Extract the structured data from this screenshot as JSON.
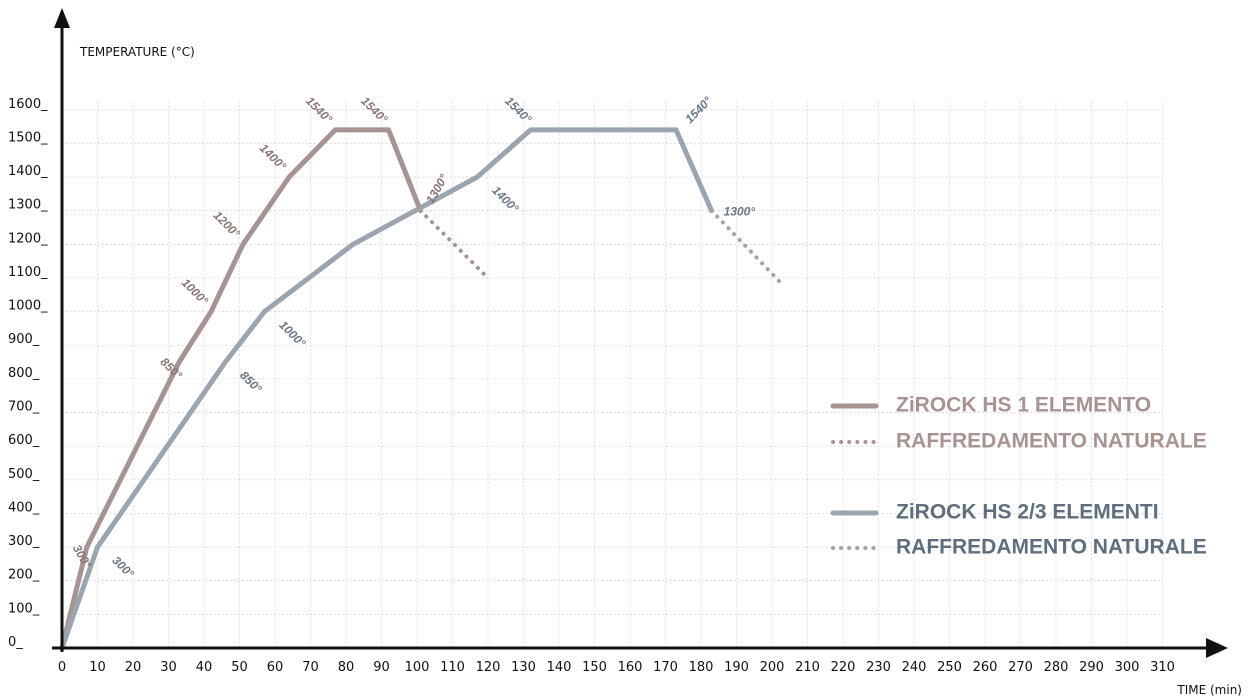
{
  "chart_data": {
    "type": "line",
    "xlabel": "TIME (min)",
    "ylabel": "TEMPERATURE (°C)",
    "xlim": [
      0,
      310
    ],
    "ylim": [
      0,
      1600
    ],
    "x_ticks": [
      "0",
      "10",
      "20",
      "30",
      "40",
      "50",
      "60",
      "70",
      "80",
      "90",
      "100",
      "110",
      "120",
      "130",
      "140",
      "150",
      "160",
      "170",
      "180",
      "190",
      "200",
      "210",
      "220",
      "230",
      "240",
      "250",
      "260",
      "270",
      "280",
      "290",
      "300",
      "310"
    ],
    "y_ticks": [
      "0_",
      "100_",
      "200_",
      "300_",
      "400_",
      "500_",
      "600_",
      "700_",
      "800_",
      "900_",
      "1000_",
      "1100_",
      "1200_",
      "1300_",
      "1400_",
      "1500_",
      "1600_"
    ],
    "grid": true,
    "legend_position": "right",
    "series": [
      {
        "name": "ZiROCK HS 1 ELEMENTO",
        "color": "#a79391",
        "style": "solid",
        "points": [
          [
            0,
            0
          ],
          [
            7,
            300
          ],
          [
            33,
            850
          ],
          [
            42,
            1000
          ],
          [
            51,
            1200
          ],
          [
            64,
            1400
          ],
          [
            77,
            1540
          ],
          [
            92,
            1540
          ],
          [
            101,
            1300
          ]
        ],
        "labels": [
          {
            "x": 7,
            "y": 300,
            "text": "300°"
          },
          {
            "x": 33,
            "y": 850,
            "text": "850°"
          },
          {
            "x": 42,
            "y": 1000,
            "text": "1000°"
          },
          {
            "x": 51,
            "y": 1200,
            "text": "1200°"
          },
          {
            "x": 64,
            "y": 1400,
            "text": "1400°"
          },
          {
            "x": 77,
            "y": 1540,
            "text": "1540°"
          },
          {
            "x": 92,
            "y": 1540,
            "text": "1540°"
          },
          {
            "x": 101,
            "y": 1300,
            "text": "1300°"
          }
        ]
      },
      {
        "name": "RAFFREDAMENTO NATURALE",
        "color": "#a79391",
        "style": "dotted",
        "points": [
          [
            101,
            1300
          ],
          [
            120,
            1100
          ]
        ]
      },
      {
        "name": "ZiROCK HS 2/3 ELEMENTI",
        "color": "#9ba5b0",
        "style": "solid",
        "points": [
          [
            0,
            0
          ],
          [
            10,
            300
          ],
          [
            46,
            850
          ],
          [
            57,
            1000
          ],
          [
            82,
            1200
          ],
          [
            117,
            1400
          ],
          [
            132,
            1540
          ],
          [
            173,
            1540
          ],
          [
            183,
            1300
          ]
        ],
        "labels": [
          {
            "x": 10,
            "y": 300,
            "text": "300°"
          },
          {
            "x": 46,
            "y": 850,
            "text": "850°"
          },
          {
            "x": 57,
            "y": 1000,
            "text": "1000°"
          },
          {
            "x": 117,
            "y": 1400,
            "text": "1400°"
          },
          {
            "x": 132,
            "y": 1540,
            "text": "1540°"
          },
          {
            "x": 173,
            "y": 1540,
            "text": "1540°"
          },
          {
            "x": 183,
            "y": 1300,
            "text": "1300°"
          }
        ]
      },
      {
        "name": "RAFFREDAMENTO NATURALE",
        "color": "#9ba5b0",
        "style": "dotted",
        "points": [
          [
            183,
            1300
          ],
          [
            203,
            1080
          ]
        ]
      }
    ],
    "legend": [
      {
        "text": "ZiROCK HS 1 ELEMENTO",
        "line_color": "#a79391",
        "text_color": "#a79391",
        "style": "solid"
      },
      {
        "text": "RAFFREDAMENTO NATURALE",
        "line_color": "#a79391",
        "text_color": "#a79391",
        "style": "dotted"
      },
      {
        "text": "ZiROCK HS 2/3 ELEMENTI",
        "line_color": "#9ba5b0",
        "text_color": "#5f6e7e",
        "style": "solid"
      },
      {
        "text": "RAFFREDAMENTO NATURALE",
        "line_color": "#9ba5b0",
        "text_color": "#5f6e7e",
        "style": "dotted"
      }
    ],
    "label_colors": {
      "ZiROCK HS 1 ELEMENTO": "#8a7674",
      "ZiROCK HS 2/3 ELEMENTI": "#6a7888"
    }
  }
}
